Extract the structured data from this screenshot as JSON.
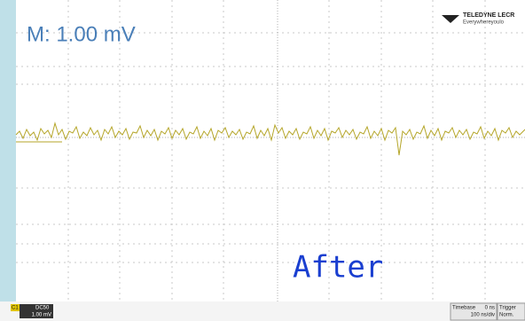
{
  "screen": {
    "measurement": "M: 1.00 mV",
    "annotation": "After",
    "logo": {
      "brand": "TELEDYNE LECR",
      "tagline": "Everywhereyoulo"
    }
  },
  "status_bar": {
    "channel": {
      "name": "C1",
      "coupling": "DC50",
      "scale": "1.00 mV"
    },
    "timebase": {
      "label": "Timebase",
      "delay": "0 ns",
      "scale": "100 ns/div"
    },
    "trigger": {
      "label": "Trigger",
      "mode": "Norm."
    }
  }
}
